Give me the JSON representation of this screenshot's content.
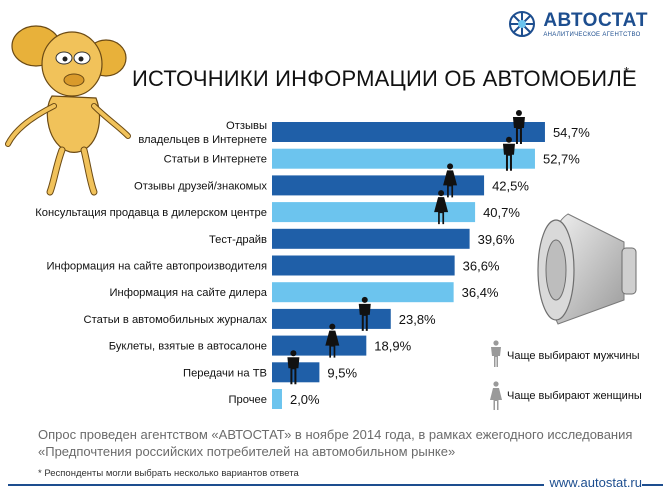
{
  "brand": {
    "name": "АВТОСТАТ",
    "subtitle": "АНАЛИТИЧЕСКОЕ АГЕНТСТВО"
  },
  "title": "ИСТОЧНИКИ ИНФОРМАЦИИ ОБ АВТОМОБИЛЕ",
  "title_mark": "*",
  "chart_data": {
    "type": "bar",
    "orientation": "horizontal",
    "categories": [
      [
        "Отзывы",
        "владельцев в Интернете"
      ],
      [
        "Статьи в Интернете"
      ],
      [
        "Отзывы друзей/знакомых"
      ],
      [
        "Консультация продавца в дилерском центре"
      ],
      [
        "Тест-драйв"
      ],
      [
        "Информация на сайте автопроизводителя"
      ],
      [
        "Информация на сайте дилера"
      ],
      [
        "Статьи в автомобильных журналах"
      ],
      [
        "Буклеты, взятые в автосалоне"
      ],
      [
        "Передачи на ТВ"
      ],
      [
        "Прочее"
      ]
    ],
    "values": [
      54.7,
      52.7,
      42.5,
      40.7,
      39.6,
      36.6,
      36.4,
      23.8,
      18.9,
      9.5,
      2.0
    ],
    "value_labels": [
      "54,7%",
      "52,7%",
      "42,5%",
      "40,7%",
      "39,6%",
      "36,6%",
      "36,4%",
      "23,8%",
      "18,9%",
      "9,5%",
      "2,0%"
    ],
    "bar_colors": [
      "#1f5fa8",
      "#6cc4ee",
      "#1f5fa8",
      "#6cc4ee",
      "#1f5fa8",
      "#1f5fa8",
      "#6cc4ee",
      "#1f5fa8",
      "#1f5fa8",
      "#1f5fa8",
      "#6cc4ee"
    ],
    "preferred_by": [
      "male",
      "male",
      "female",
      "female",
      "none",
      "none",
      "none",
      "male",
      "female",
      "male",
      "none"
    ],
    "xlim": [
      0,
      60
    ],
    "grid": false,
    "legend": "right"
  },
  "legend": {
    "items": [
      {
        "icon": "male-figure-icon",
        "label": "Чаще выбирают мужчины"
      },
      {
        "icon": "female-figure-icon",
        "label": "Чаще выбирают женщины"
      }
    ]
  },
  "caption": {
    "line1": "Опрос проведен агентством «АВТОСТАТ» в ноябре 2014 года,  в рамках ежегодного исследования",
    "line2": "«Предпочтения российских потребителей на автомобильном рынке»"
  },
  "footnote": "* Респонденты могли выбрать несколько вариантов ответа",
  "footer": {
    "url": "www.autostat.ru"
  },
  "colors": {
    "dark_bar": "#1f5fa8",
    "light_bar": "#6cc4ee",
    "brand": "#1d4e8f",
    "caption": "#6b6b6b"
  }
}
